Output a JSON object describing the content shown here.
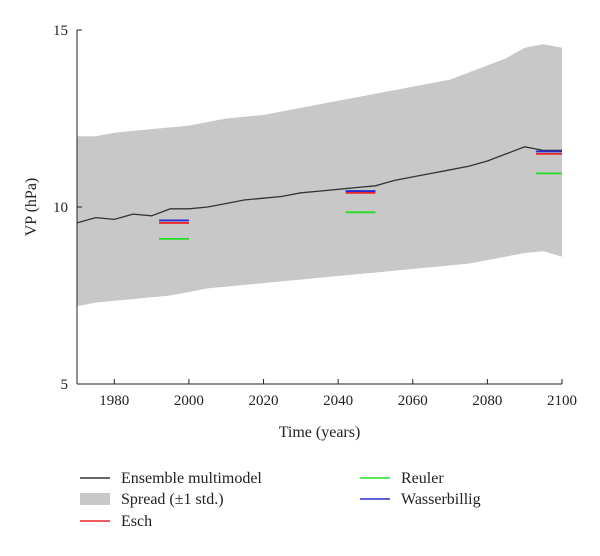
{
  "chart_data": {
    "type": "line",
    "title": "",
    "xlabel": "Time (years)",
    "ylabel": "VP (hPa)",
    "xlim": [
      1970,
      2100
    ],
    "ylim": [
      5,
      15
    ],
    "x_ticks": [
      1980,
      2000,
      2020,
      2040,
      2060,
      2080,
      2100
    ],
    "x_tick_labels": [
      "1980",
      "2000",
      "2020",
      "2040",
      "2060",
      "2080",
      "2100"
    ],
    "y_ticks": [
      5,
      10,
      15
    ],
    "y_tick_labels": [
      "5",
      "10",
      "15"
    ],
    "grid": false,
    "legend_placement": "bottom",
    "colors": {
      "ensemble": "#333333",
      "spread": "#c8c8c8",
      "esch": "#e8262a",
      "reuler": "#22dd22",
      "wasserbillig": "#2a2ad0"
    },
    "series": [
      {
        "name": "Ensemble multimodel",
        "kind": "line",
        "x": [
          1970,
          1975,
          1980,
          1985,
          1990,
          1995,
          2000,
          2005,
          2010,
          2015,
          2020,
          2025,
          2030,
          2035,
          2040,
          2045,
          2050,
          2055,
          2060,
          2065,
          2070,
          2075,
          2080,
          2085,
          2090,
          2095,
          2100
        ],
        "values": [
          9.55,
          9.7,
          9.65,
          9.8,
          9.75,
          9.95,
          9.95,
          10.0,
          10.1,
          10.2,
          10.25,
          10.3,
          10.4,
          10.45,
          10.5,
          10.55,
          10.6,
          10.75,
          10.85,
          10.95,
          11.05,
          11.15,
          11.3,
          11.5,
          11.7,
          11.6,
          11.6
        ]
      },
      {
        "name": "Spread (±1 std.)",
        "kind": "band",
        "x": [
          1970,
          1975,
          1980,
          1985,
          1990,
          1995,
          2000,
          2005,
          2010,
          2015,
          2020,
          2025,
          2030,
          2035,
          2040,
          2045,
          2050,
          2055,
          2060,
          2065,
          2070,
          2075,
          2080,
          2085,
          2090,
          2095,
          2100
        ],
        "upper": [
          12.0,
          12.0,
          12.1,
          12.15,
          12.2,
          12.25,
          12.3,
          12.4,
          12.5,
          12.55,
          12.6,
          12.7,
          12.8,
          12.9,
          13.0,
          13.1,
          13.2,
          13.3,
          13.4,
          13.5,
          13.6,
          13.8,
          14.0,
          14.2,
          14.5,
          14.6,
          14.5
        ],
        "lower": [
          7.2,
          7.3,
          7.35,
          7.4,
          7.45,
          7.5,
          7.6,
          7.7,
          7.75,
          7.8,
          7.85,
          7.9,
          7.95,
          8.0,
          8.05,
          8.1,
          8.15,
          8.2,
          8.25,
          8.3,
          8.35,
          8.4,
          8.5,
          8.6,
          8.7,
          8.75,
          8.6
        ]
      },
      {
        "name": "Esch",
        "kind": "segments",
        "segments": [
          {
            "x": [
              1992,
              2000
            ],
            "y": 9.55
          },
          {
            "x": [
              2042,
              2050
            ],
            "y": 10.4
          },
          {
            "x": [
              2093,
              2100
            ],
            "y": 11.5
          }
        ]
      },
      {
        "name": "Reuler",
        "kind": "segments",
        "segments": [
          {
            "x": [
              1992,
              2000
            ],
            "y": 9.1
          },
          {
            "x": [
              2042,
              2050
            ],
            "y": 9.85
          },
          {
            "x": [
              2093,
              2100
            ],
            "y": 10.95
          }
        ]
      },
      {
        "name": "Wasserbillig",
        "kind": "segments",
        "segments": [
          {
            "x": [
              1992,
              2000
            ],
            "y": 9.62
          },
          {
            "x": [
              2042,
              2050
            ],
            "y": 10.45
          },
          {
            "x": [
              2093,
              2100
            ],
            "y": 11.57
          }
        ]
      }
    ],
    "legend": [
      {
        "label": "Ensemble multimodel",
        "key": "ensemble",
        "style": "line"
      },
      {
        "label": "Spread (±1 std.)",
        "key": "spread",
        "style": "band"
      },
      {
        "label": "Esch",
        "key": "esch",
        "style": "line"
      },
      {
        "label": "Reuler",
        "key": "reuler",
        "style": "line"
      },
      {
        "label": "Wasserbillig",
        "key": "wasserbillig",
        "style": "line"
      }
    ]
  }
}
